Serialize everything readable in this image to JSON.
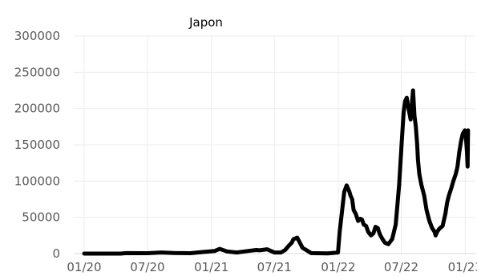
{
  "chart_data": {
    "type": "line",
    "title": "Japon",
    "xlabel": "",
    "ylabel": "",
    "ylim": [
      0,
      300000
    ],
    "y_ticks": [
      0,
      50000,
      100000,
      150000,
      200000,
      250000,
      300000
    ],
    "y_tick_labels": [
      "0",
      "50000",
      "100000",
      "150000",
      "200000",
      "250000",
      "300000"
    ],
    "x_ticks": [
      "2020-01-01",
      "2020-07-01",
      "2021-01-01",
      "2021-07-01",
      "2022-01-01",
      "2022-07-01",
      "2023-01-01"
    ],
    "x_tick_labels": [
      "01/20",
      "07/20",
      "01/21",
      "07/21",
      "01/22",
      "07/22",
      "01/23"
    ],
    "xlim": [
      "2020-01-01",
      "2023-01-10"
    ],
    "grid": true,
    "legend": "none",
    "colors": {
      "line": "#000000",
      "grid": "#ececec",
      "text": "#595959"
    },
    "series": [
      {
        "x": [
          "2020-01-01",
          "2020-03-01",
          "2020-04-15",
          "2020-05-01",
          "2020-07-01",
          "2020-08-10",
          "2020-09-15",
          "2020-11-01",
          "2020-12-15",
          "2021-01-10",
          "2021-01-25",
          "2021-02-15",
          "2021-03-15",
          "2021-04-15",
          "2021-05-10",
          "2021-05-20",
          "2021-06-10",
          "2021-07-01",
          "2021-07-20",
          "2021-08-01",
          "2021-08-10",
          "2021-08-20",
          "2021-08-25",
          "2021-09-05",
          "2021-09-20",
          "2021-10-15",
          "2021-12-01",
          "2021-12-31",
          "2022-01-05",
          "2022-01-12",
          "2022-01-18",
          "2022-01-25",
          "2022-02-02",
          "2022-02-05",
          "2022-02-10",
          "2022-02-14",
          "2022-02-20",
          "2022-02-27",
          "2022-03-05",
          "2022-03-10",
          "2022-03-15",
          "2022-03-22",
          "2022-03-28",
          "2022-04-05",
          "2022-04-12",
          "2022-04-18",
          "2022-04-25",
          "2022-04-28",
          "2022-05-02",
          "2022-05-08",
          "2022-05-15",
          "2022-05-25",
          "2022-06-05",
          "2022-06-15",
          "2022-06-25",
          "2022-07-02",
          "2022-07-08",
          "2022-07-12",
          "2022-07-17",
          "2022-07-22",
          "2022-07-28",
          "2022-08-04",
          "2022-08-08",
          "2022-08-12",
          "2022-08-16",
          "2022-08-18",
          "2022-08-22",
          "2022-08-28",
          "2022-09-05",
          "2022-09-12",
          "2022-09-20",
          "2022-09-28",
          "2022-10-05",
          "2022-10-08",
          "2022-10-12",
          "2022-10-20",
          "2022-10-28",
          "2022-11-05",
          "2022-11-10",
          "2022-11-15",
          "2022-11-22",
          "2022-11-28",
          "2022-12-05",
          "2022-12-10",
          "2022-12-15",
          "2022-12-20",
          "2022-12-25",
          "2022-12-31",
          "2023-01-03",
          "2023-01-06",
          "2023-01-08",
          "2023-01-09"
        ],
        "values": [
          0,
          0,
          0,
          700,
          500,
          1500,
          800,
          500,
          2500,
          3500,
          6500,
          3000,
          1500,
          3500,
          5000,
          4500,
          6000,
          1500,
          1500,
          5000,
          10000,
          15000,
          20000,
          22000,
          8000,
          700,
          200,
          1500,
          30000,
          60000,
          85000,
          94000,
          85000,
          80000,
          75000,
          60000,
          55000,
          45000,
          48000,
          47000,
          40000,
          38000,
          30000,
          25000,
          28000,
          37000,
          35000,
          30000,
          25000,
          20000,
          15000,
          13000,
          20000,
          40000,
          95000,
          150000,
          195000,
          210000,
          215000,
          200000,
          185000,
          225000,
          190000,
          175000,
          150000,
          130000,
          110000,
          95000,
          80000,
          60000,
          45000,
          35000,
          30000,
          25000,
          30000,
          35000,
          38000,
          55000,
          70000,
          80000,
          90000,
          100000,
          110000,
          120000,
          140000,
          155000,
          165000,
          170000,
          160000,
          140000,
          120000,
          170000
        ]
      }
    ]
  }
}
